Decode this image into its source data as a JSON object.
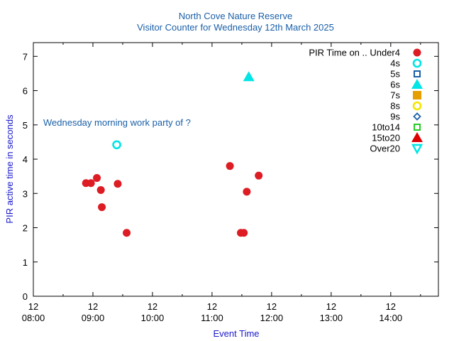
{
  "chart_data": {
    "type": "scatter",
    "title": "North Cove Nature Reserve",
    "subtitle": "Visitor Counter for Wednesday 12th March 2025",
    "xlabel": "Event Time",
    "ylabel": "PIR active time in seconds",
    "xlim": [
      "08:00",
      "14:48"
    ],
    "ylim": [
      0,
      7.4
    ],
    "x_ticks": [
      {
        "day": "12",
        "time": "08:00"
      },
      {
        "day": "12",
        "time": "09:00"
      },
      {
        "day": "12",
        "time": "10:00"
      },
      {
        "day": "12",
        "time": "11:00"
      },
      {
        "day": "12",
        "time": "12:00"
      },
      {
        "day": "12",
        "time": "13:00"
      },
      {
        "day": "12",
        "time": "14:00"
      }
    ],
    "y_ticks": [
      0,
      1,
      2,
      3,
      4,
      5,
      6,
      7
    ],
    "legend_position": "top-right",
    "legend_title": "PIR Time on .. Under4",
    "annotation": "Wednesday morning work party of ?",
    "series": [
      {
        "name": "Under4",
        "marker": "circle-filled",
        "color": "#dd1c24",
        "points": [
          {
            "x": "08:53",
            "y": 3.3
          },
          {
            "x": "08:58",
            "y": 3.3
          },
          {
            "x": "09:04",
            "y": 3.45
          },
          {
            "x": "09:08",
            "y": 3.1
          },
          {
            "x": "09:09",
            "y": 2.6
          },
          {
            "x": "09:25",
            "y": 3.28
          },
          {
            "x": "09:34",
            "y": 1.85
          },
          {
            "x": "11:18",
            "y": 3.8
          },
          {
            "x": "11:29",
            "y": 1.85
          },
          {
            "x": "11:32",
            "y": 1.85
          },
          {
            "x": "11:35",
            "y": 3.05
          },
          {
            "x": "11:47",
            "y": 3.52
          }
        ]
      },
      {
        "name": "4s",
        "marker": "circle-open",
        "color": "#00e5e5",
        "points": [
          {
            "x": "09:24",
            "y": 4.42
          }
        ]
      },
      {
        "name": "5s",
        "marker": "square-open",
        "color": "#1a5fa8",
        "points": []
      },
      {
        "name": "6s",
        "marker": "triangle-up-filled",
        "color": "#00e5e5",
        "points": [
          {
            "x": "11:37",
            "y": 6.4
          }
        ]
      },
      {
        "name": "7s",
        "marker": "square-filled",
        "color": "#e69f00",
        "points": []
      },
      {
        "name": "8s",
        "marker": "circle-open",
        "color": "#f2e600",
        "points": []
      },
      {
        "name": "9s",
        "marker": "diamond-open",
        "color": "#1a5fa8",
        "points": []
      },
      {
        "name": "10to14",
        "marker": "square-open",
        "color": "#22cc22",
        "points": []
      },
      {
        "name": "15to20",
        "marker": "triangle-up-filled",
        "color": "#dd0000",
        "points": []
      },
      {
        "name": "Over20",
        "marker": "triangle-down-open",
        "color": "#00e5e5",
        "points": []
      }
    ]
  }
}
